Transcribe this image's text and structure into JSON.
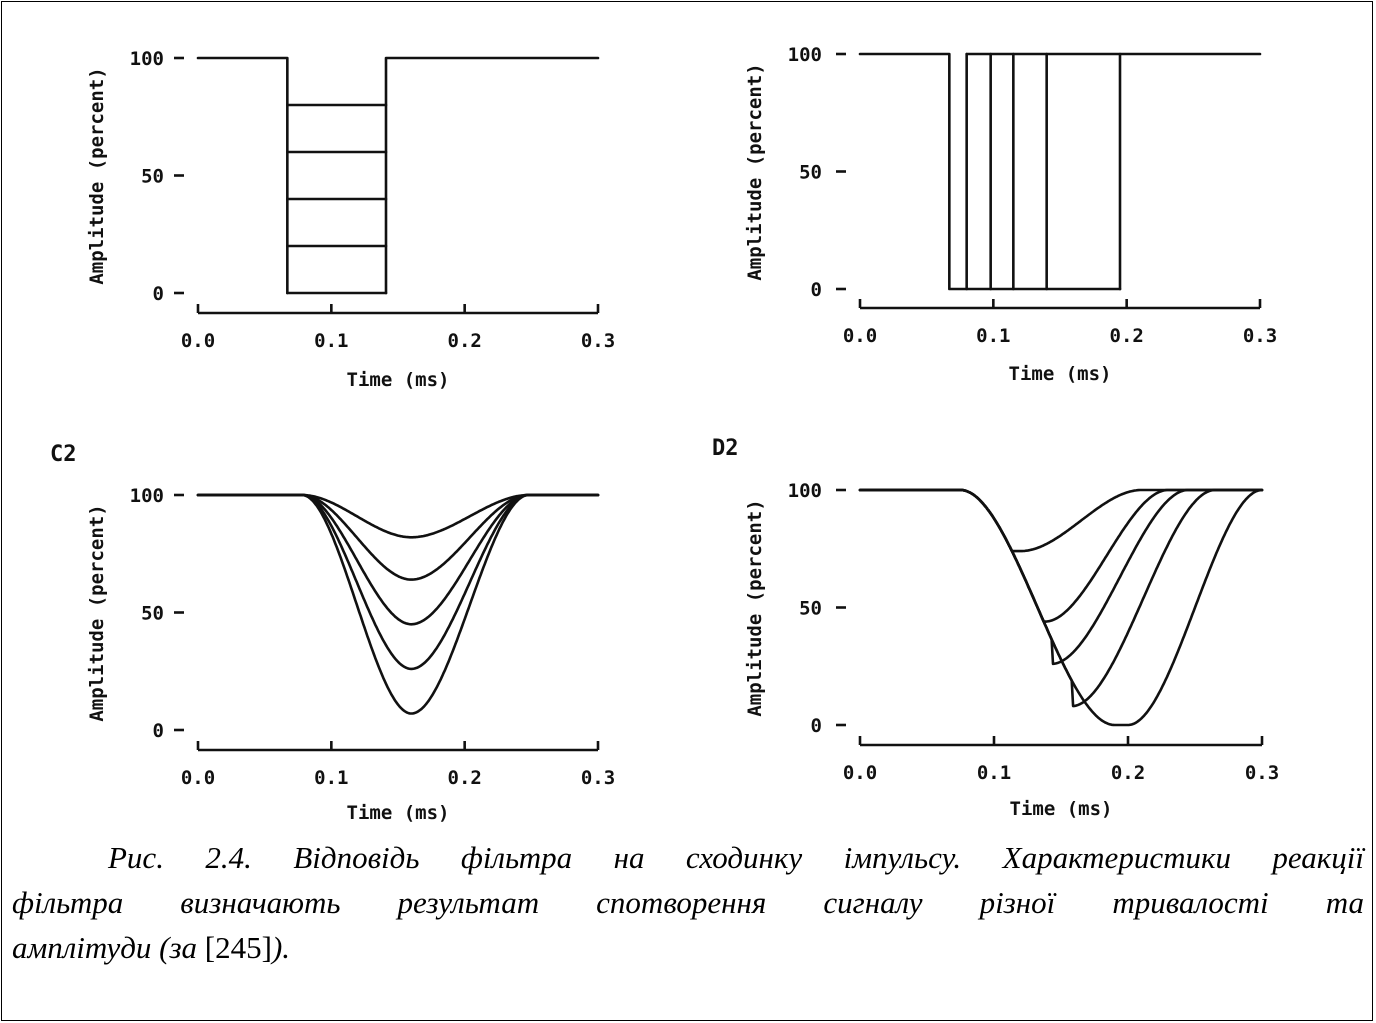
{
  "chart_data": [
    {
      "panel": "",
      "type": "line",
      "xlabel": "Time (ms)",
      "ylabel": "Amplitude (percent)",
      "xlim": [
        0.0,
        0.3
      ],
      "ylim": [
        0,
        100
      ],
      "xticks": [
        "0.0",
        "0.1",
        "0.2",
        "0.3"
      ],
      "yticks": [
        "0",
        "50",
        "100"
      ],
      "pulse_start": 0.067,
      "pulse_end": 0.141,
      "series": [
        {
          "levels": [
            100,
            80,
            100
          ]
        },
        {
          "levels": [
            100,
            60,
            100
          ]
        },
        {
          "levels": [
            100,
            40,
            100
          ]
        },
        {
          "levels": [
            100,
            20,
            100
          ]
        },
        {
          "levels": [
            100,
            0,
            100
          ]
        }
      ]
    },
    {
      "panel": "",
      "type": "line",
      "xlabel": "Time (ms)",
      "ylabel": "Amplitude (percent)",
      "xlim": [
        0.0,
        0.3
      ],
      "ylim": [
        0,
        100
      ],
      "xticks": [
        "0.0",
        "0.1",
        "0.2",
        "0.3"
      ],
      "yticks": [
        "0",
        "50",
        "100"
      ],
      "pulse_start": 0.067,
      "pulse_ends": [
        0.08,
        0.098,
        0.115,
        0.14,
        0.195
      ]
    },
    {
      "panel": "C2",
      "type": "line",
      "xlabel": "Time (ms)",
      "ylabel": "Amplitude (percent)",
      "xlim": [
        0.0,
        0.3
      ],
      "ylim": [
        0,
        100
      ],
      "xticks": [
        "0.0",
        "0.1",
        "0.2",
        "0.3"
      ],
      "yticks": [
        "0",
        "50",
        "100"
      ],
      "curve_start": 0.078,
      "curve_end": 0.248,
      "minimum_at": 0.16,
      "series": [
        {
          "minimum": 82
        },
        {
          "minimum": 64
        },
        {
          "minimum": 45
        },
        {
          "minimum": 26
        },
        {
          "minimum": 7
        }
      ]
    },
    {
      "panel": "D2",
      "type": "line",
      "xlabel": "Time (ms)",
      "ylabel": "Amplitude (percent)",
      "xlim": [
        0.0,
        0.3
      ],
      "ylim": [
        0,
        100
      ],
      "xticks": [
        "0.0",
        "0.1",
        "0.2",
        "0.3"
      ],
      "yticks": [
        "0",
        "50",
        "100"
      ],
      "curve_start": 0.075,
      "series": [
        {
          "minimum_at": 0.12,
          "minimum": 74,
          "recovered_at": 0.21
        },
        {
          "minimum_at": 0.138,
          "minimum": 44,
          "recovered_at": 0.23
        },
        {
          "minimum_at": 0.143,
          "minimum": 26,
          "recovered_at": 0.245
        },
        {
          "minimum_at": 0.158,
          "minimum": 8,
          "recovered_at": 0.265
        },
        {
          "minimum_at": 0.2,
          "minimum": 0,
          "recovered_at": 0.3
        }
      ]
    }
  ],
  "caption": {
    "line1": "Рис. 2.4. Відповідь фільтра на сходинку імпульсу. Характеристики реакції",
    "line2": "фільтра визначають результат спотворення сигналу різної тривалості та",
    "line3_before": "амплітуди (за ",
    "ref": "[245]",
    "line3_after": ")."
  }
}
